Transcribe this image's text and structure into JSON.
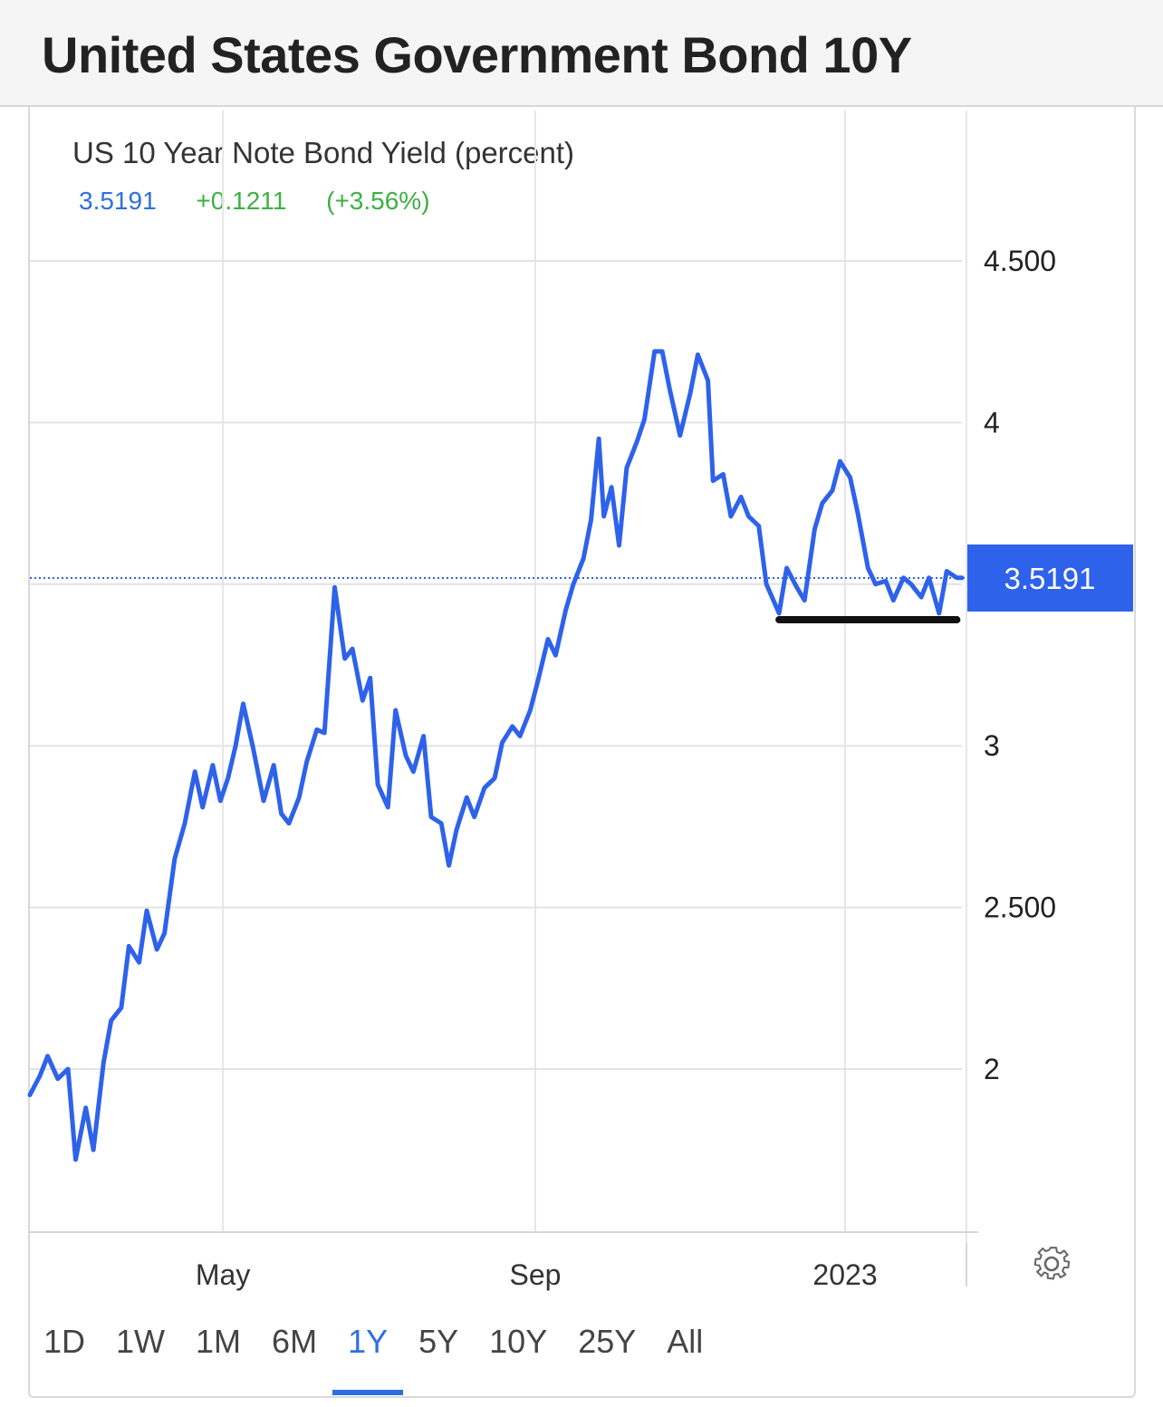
{
  "page": {
    "title": "United States Government Bond 10Y"
  },
  "quote": {
    "series_name": "US 10 Year Note Bond Yield (percent)",
    "last": "3.5191",
    "change": "+0.1211",
    "change_pct": "(+3.56%)"
  },
  "ranges": [
    {
      "label": "1D",
      "active": false
    },
    {
      "label": "1W",
      "active": false
    },
    {
      "label": "1M",
      "active": false
    },
    {
      "label": "6M",
      "active": false
    },
    {
      "label": "1Y",
      "active": true
    },
    {
      "label": "5Y",
      "active": false
    },
    {
      "label": "10Y",
      "active": false
    },
    {
      "label": "25Y",
      "active": false
    },
    {
      "label": "All",
      "active": false
    }
  ],
  "icons": {
    "settings": "gear-icon"
  },
  "colors": {
    "line": "#2e62eb",
    "price_tag": "#2e62eb",
    "positive": "#3cb043",
    "annotation": "#111111"
  },
  "chart_data": {
    "type": "line",
    "title": "US 10 Year Note Bond Yield (percent)",
    "xlabel": "",
    "ylabel": "",
    "ylim": [
      1.5,
      4.8
    ],
    "xlim": [
      "2022-02-14",
      "2023-02-16"
    ],
    "grid": true,
    "y_ticks": [
      {
        "value": 4.5,
        "label": "4.500"
      },
      {
        "value": 4.0,
        "label": "4"
      },
      {
        "value": 3.5,
        "label": ""
      },
      {
        "value": 3.0,
        "label": "3"
      },
      {
        "value": 2.5,
        "label": "2.500"
      },
      {
        "value": 2.0,
        "label": "2"
      }
    ],
    "x_ticks": [
      {
        "value": "2022-05-01",
        "label": "May"
      },
      {
        "value": "2022-09-01",
        "label": "Sep"
      },
      {
        "value": "2023-01-01",
        "label": "2023"
      }
    ],
    "last_value": {
      "value": 3.5191,
      "label": "3.5191"
    },
    "support_line": {
      "from": "2022-12-06",
      "to": "2023-02-14",
      "value": 3.39
    },
    "series": [
      {
        "x": [
          "2022-02-14",
          "2022-02-18",
          "2022-02-21",
          "2022-02-25",
          "2022-03-01",
          "2022-03-04",
          "2022-03-08",
          "2022-03-11",
          "2022-03-15",
          "2022-03-18",
          "2022-03-22",
          "2022-03-25",
          "2022-03-29",
          "2022-04-01",
          "2022-04-05",
          "2022-04-08",
          "2022-04-12",
          "2022-04-16",
          "2022-04-20",
          "2022-04-23",
          "2022-04-27",
          "2022-04-30",
          "2022-05-03",
          "2022-05-06",
          "2022-05-09",
          "2022-05-13",
          "2022-05-17",
          "2022-05-21",
          "2022-05-24",
          "2022-05-27",
          "2022-05-31",
          "2022-06-03",
          "2022-06-07",
          "2022-06-10",
          "2022-06-14",
          "2022-06-18",
          "2022-06-21",
          "2022-06-25",
          "2022-06-28",
          "2022-07-01",
          "2022-07-05",
          "2022-07-08",
          "2022-07-12",
          "2022-07-15",
          "2022-07-19",
          "2022-07-22",
          "2022-07-26",
          "2022-07-29",
          "2022-08-01",
          "2022-08-05",
          "2022-08-08",
          "2022-08-12",
          "2022-08-16",
          "2022-08-19",
          "2022-08-23",
          "2022-08-26",
          "2022-08-30",
          "2022-09-02",
          "2022-09-06",
          "2022-09-09",
          "2022-09-13",
          "2022-09-16",
          "2022-09-20",
          "2022-09-23",
          "2022-09-26",
          "2022-09-28",
          "2022-10-01",
          "2022-10-04",
          "2022-10-07",
          "2022-10-11",
          "2022-10-14",
          "2022-10-18",
          "2022-10-21",
          "2022-10-24",
          "2022-10-28",
          "2022-11-01",
          "2022-11-04",
          "2022-11-08",
          "2022-11-10",
          "2022-11-14",
          "2022-11-17",
          "2022-11-21",
          "2022-11-24",
          "2022-11-28",
          "2022-12-01",
          "2022-12-06",
          "2022-12-09",
          "2022-12-13",
          "2022-12-16",
          "2022-12-20",
          "2022-12-23",
          "2022-12-27",
          "2022-12-30",
          "2023-01-03",
          "2023-01-06",
          "2023-01-10",
          "2023-01-13",
          "2023-01-17",
          "2023-01-20",
          "2023-01-24",
          "2023-01-27",
          "2023-01-31",
          "2023-02-03",
          "2023-02-07",
          "2023-02-10",
          "2023-02-14",
          "2023-02-16"
        ],
        "values": [
          1.92,
          1.98,
          2.04,
          1.97,
          2.0,
          1.72,
          1.88,
          1.75,
          2.02,
          2.15,
          2.19,
          2.38,
          2.33,
          2.49,
          2.37,
          2.42,
          2.65,
          2.76,
          2.92,
          2.81,
          2.94,
          2.83,
          2.9,
          3.0,
          3.13,
          2.99,
          2.83,
          2.94,
          2.79,
          2.76,
          2.84,
          2.95,
          3.05,
          3.04,
          3.49,
          3.27,
          3.3,
          3.14,
          3.21,
          2.88,
          2.81,
          3.11,
          2.97,
          2.92,
          3.03,
          2.78,
          2.76,
          2.63,
          2.74,
          2.84,
          2.78,
          2.87,
          2.9,
          3.01,
          3.06,
          3.03,
          3.11,
          3.2,
          3.33,
          3.28,
          3.42,
          3.5,
          3.58,
          3.7,
          3.95,
          3.71,
          3.8,
          3.62,
          3.86,
          3.94,
          4.01,
          4.22,
          4.22,
          4.1,
          3.96,
          4.09,
          4.21,
          4.13,
          3.82,
          3.84,
          3.71,
          3.77,
          3.71,
          3.68,
          3.5,
          3.41,
          3.55,
          3.49,
          3.45,
          3.67,
          3.75,
          3.79,
          3.88,
          3.83,
          3.72,
          3.55,
          3.5,
          3.51,
          3.45,
          3.52,
          3.5,
          3.46,
          3.52,
          3.41,
          3.54,
          3.52,
          3.52
        ]
      }
    ]
  }
}
